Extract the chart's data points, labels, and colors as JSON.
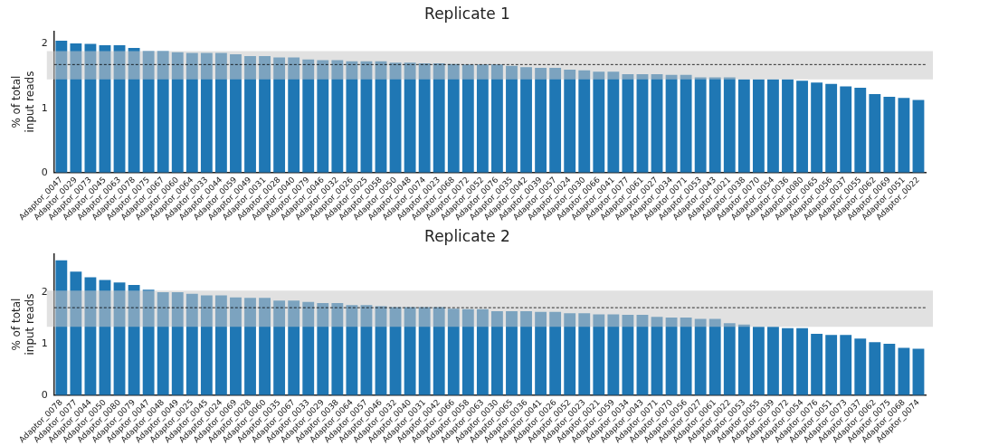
{
  "chart_data": [
    {
      "type": "bar",
      "title": "Replicate 1",
      "ylabel": "% of total\ninput reads",
      "ylim": [
        0,
        2.2
      ],
      "yticks": [
        0,
        1,
        2
      ],
      "grid": false,
      "legend": false,
      "categories": [
        "Adaptor_0047",
        "Adaptor_0029",
        "Adaptor_0073",
        "Adaptor_0045",
        "Adaptor_0063",
        "Adaptor_0078",
        "Adaptor_0075",
        "Adaptor_0067",
        "Adaptor_0060",
        "Adaptor_0064",
        "Adaptor_0033",
        "Adaptor_0044",
        "Adaptor_0059",
        "Adaptor_0049",
        "Adaptor_0031",
        "Adaptor_0028",
        "Adaptor_0040",
        "Adaptor_0079",
        "Adaptor_0046",
        "Adaptor_0032",
        "Adaptor_0026",
        "Adaptor_0025",
        "Adaptor_0058",
        "Adaptor_0050",
        "Adaptor_0048",
        "Adaptor_0074",
        "Adaptor_0023",
        "Adaptor_0068",
        "Adaptor_0072",
        "Adaptor_0052",
        "Adaptor_0076",
        "Adaptor_0035",
        "Adaptor_0042",
        "Adaptor_0039",
        "Adaptor_0057",
        "Adaptor_0024",
        "Adaptor_0030",
        "Adaptor_0066",
        "Adaptor_0041",
        "Adaptor_0077",
        "Adaptor_0061",
        "Adaptor_0027",
        "Adaptor_0034",
        "Adaptor_0071",
        "Adaptor_0053",
        "Adaptor_0043",
        "Adaptor_0021",
        "Adaptor_0038",
        "Adaptor_0070",
        "Adaptor_0054",
        "Adaptor_0036",
        "Adaptor_0080",
        "Adaptor_0065",
        "Adaptor_0056",
        "Adaptor_0037",
        "Adaptor_0055",
        "Adaptor_0062",
        "Adaptor_0069",
        "Adaptor_0051",
        "Adaptor_0022"
      ],
      "series": [
        {
          "color": "#1f77b4",
          "values": [
            2.05,
            2.01,
            2.0,
            1.98,
            1.98,
            1.94,
            1.89,
            1.89,
            1.87,
            1.86,
            1.86,
            1.86,
            1.84,
            1.81,
            1.81,
            1.79,
            1.79,
            1.76,
            1.75,
            1.75,
            1.73,
            1.73,
            1.73,
            1.71,
            1.71,
            1.7,
            1.7,
            1.69,
            1.68,
            1.68,
            1.68,
            1.66,
            1.64,
            1.63,
            1.63,
            1.6,
            1.59,
            1.57,
            1.57,
            1.53,
            1.53,
            1.53,
            1.52,
            1.52,
            1.48,
            1.48,
            1.48,
            1.45,
            1.45,
            1.45,
            1.45,
            1.43,
            1.4,
            1.38,
            1.34,
            1.32,
            1.22,
            1.18,
            1.16,
            1.13
          ]
        }
      ],
      "bands": [
        {
          "axis": "y",
          "from": 1.45,
          "to": 1.89,
          "color": "#c8c8c8"
        }
      ],
      "ref_lines": [
        {
          "axis": "y",
          "value": 1.68,
          "color": "#000000",
          "line_style": "dashed"
        }
      ]
    },
    {
      "type": "bar",
      "title": "Replicate 2",
      "ylabel": "% of total\ninput reads",
      "ylim": [
        0,
        2.75
      ],
      "yticks": [
        0,
        1,
        2
      ],
      "grid": false,
      "legend": false,
      "categories": [
        "Adaptor_0078",
        "Adaptor_0077",
        "Adaptor_0044",
        "Adaptor_0050",
        "Adaptor_0080",
        "Adaptor_0079",
        "Adaptor_0047",
        "Adaptor_0048",
        "Adaptor_0049",
        "Adaptor_0025",
        "Adaptor_0045",
        "Adaptor_0024",
        "Adaptor_0069",
        "Adaptor_0028",
        "Adaptor_0060",
        "Adaptor_0035",
        "Adaptor_0067",
        "Adaptor_0033",
        "Adaptor_0029",
        "Adaptor_0038",
        "Adaptor_0064",
        "Adaptor_0057",
        "Adaptor_0046",
        "Adaptor_0032",
        "Adaptor_0040",
        "Adaptor_0031",
        "Adaptor_0042",
        "Adaptor_0066",
        "Adaptor_0058",
        "Adaptor_0063",
        "Adaptor_0030",
        "Adaptor_0065",
        "Adaptor_0036",
        "Adaptor_0041",
        "Adaptor_0026",
        "Adaptor_0052",
        "Adaptor_0023",
        "Adaptor_0021",
        "Adaptor_0059",
        "Adaptor_0034",
        "Adaptor_0043",
        "Adaptor_0071",
        "Adaptor_0070",
        "Adaptor_0056",
        "Adaptor_0027",
        "Adaptor_0061",
        "Adaptor_0022",
        "Adaptor_0053",
        "Adaptor_0055",
        "Adaptor_0039",
        "Adaptor_0072",
        "Adaptor_0054",
        "Adaptor_0076",
        "Adaptor_0051",
        "Adaptor_0073",
        "Adaptor_0037",
        "Adaptor_0062",
        "Adaptor_0075",
        "Adaptor_0068",
        "Adaptor_0074"
      ],
      "series": [
        {
          "color": "#1f77b4",
          "values": [
            2.62,
            2.4,
            2.29,
            2.24,
            2.19,
            2.14,
            2.05,
            2.0,
            2.0,
            1.97,
            1.94,
            1.94,
            1.9,
            1.89,
            1.89,
            1.84,
            1.84,
            1.81,
            1.79,
            1.79,
            1.75,
            1.75,
            1.73,
            1.71,
            1.71,
            1.71,
            1.71,
            1.68,
            1.67,
            1.67,
            1.63,
            1.63,
            1.63,
            1.62,
            1.62,
            1.59,
            1.59,
            1.57,
            1.57,
            1.56,
            1.56,
            1.52,
            1.51,
            1.51,
            1.48,
            1.48,
            1.4,
            1.37,
            1.33,
            1.33,
            1.3,
            1.3,
            1.19,
            1.17,
            1.17,
            1.1,
            1.03,
            1.0,
            0.92,
            0.9
          ]
        }
      ],
      "bands": [
        {
          "axis": "y",
          "from": 1.33,
          "to": 2.03,
          "color": "#c8c8c8"
        }
      ],
      "ref_lines": [
        {
          "axis": "y",
          "value": 1.7,
          "color": "#000000",
          "line_style": "dashed"
        }
      ]
    }
  ]
}
